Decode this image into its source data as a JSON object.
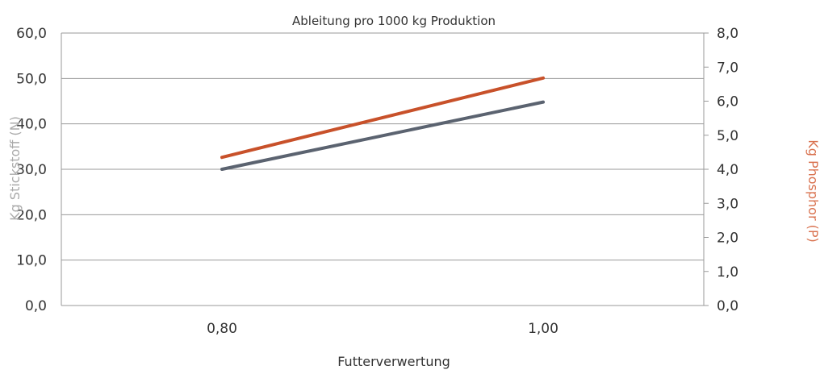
{
  "chart_data": {
    "type": "line",
    "title": "Ableitung pro 1000 kg Produktion",
    "xlabel": "Futterverwertung",
    "ylabel": "Kg Stickstoff (N)",
    "ylabel_right": "Kg Phosphor (P)",
    "categories": [
      "0,80",
      "1,00"
    ],
    "ylim": [
      0,
      60
    ],
    "ylim_right": [
      0,
      8
    ],
    "yticks": [
      "0,0",
      "10,0",
      "20,0",
      "30,0",
      "40,0",
      "50,0",
      "60,0"
    ],
    "yticks_right": [
      "0,0",
      "1,0",
      "2,0",
      "3,0",
      "4,0",
      "5,0",
      "6,0",
      "7,0",
      "8,0"
    ],
    "grid": true,
    "series": [
      {
        "values": [
          30.0,
          44.8
        ],
        "axis": "left",
        "color": "#5b6370"
      },
      {
        "values": [
          4.35,
          6.68
        ],
        "axis": "right",
        "color": "#c8512a"
      }
    ],
    "colors": {
      "left_axis_title": "#aaaaaa",
      "right_axis_title": "#d9724f"
    }
  }
}
